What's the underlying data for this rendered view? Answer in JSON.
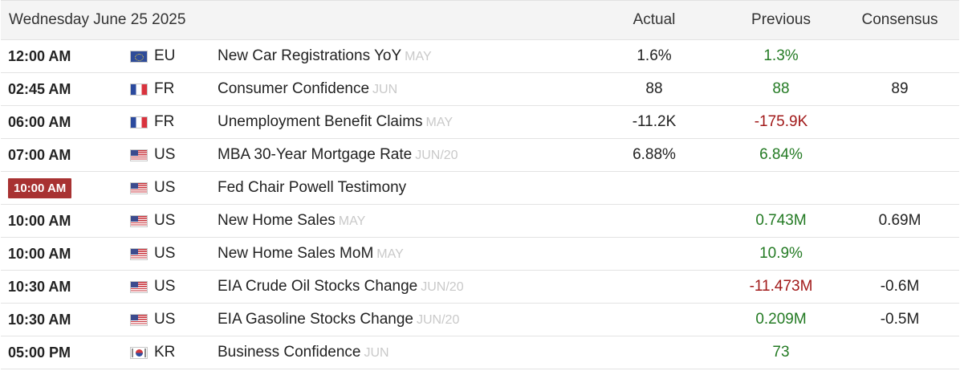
{
  "header": {
    "date": "Wednesday June 25 2025",
    "actual": "Actual",
    "previous": "Previous",
    "consensus": "Consensus"
  },
  "colors": {
    "positive": "#237a23",
    "negative": "#a11a1a",
    "live_badge": "#a83232"
  },
  "rows": [
    {
      "time": "12:00 AM",
      "flag": "eu-flag-icon",
      "country": "EU",
      "event": "New Car Registrations YoY",
      "period": "MAY",
      "actual": "1.6%",
      "previous": "1.3%",
      "consensus": ""
    },
    {
      "time": "02:45 AM",
      "flag": "fr-flag-icon",
      "country": "FR",
      "event": "Consumer Confidence",
      "period": "JUN",
      "actual": "88",
      "previous": "88",
      "consensus": "89"
    },
    {
      "time": "06:00 AM",
      "flag": "fr-flag-icon",
      "country": "FR",
      "event": "Unemployment Benefit Claims",
      "period": "MAY",
      "actual": "-11.2K",
      "previous": "-175.9K",
      "consensus": ""
    },
    {
      "time": "07:00 AM",
      "flag": "us-flag-icon",
      "country": "US",
      "event": "MBA 30-Year Mortgage Rate",
      "period": "JUN/20",
      "actual": "6.88%",
      "previous": "6.84%",
      "consensus": ""
    },
    {
      "time": "10:00 AM",
      "flag": "us-flag-icon",
      "country": "US",
      "event": "Fed Chair Powell Testimony",
      "period": "",
      "actual": "",
      "previous": "",
      "consensus": "",
      "highlight": true
    },
    {
      "time": "10:00 AM",
      "flag": "us-flag-icon",
      "country": "US",
      "event": "New Home Sales",
      "period": "MAY",
      "actual": "",
      "previous": "0.743M",
      "consensus": "0.69M"
    },
    {
      "time": "10:00 AM",
      "flag": "us-flag-icon",
      "country": "US",
      "event": "New Home Sales MoM",
      "period": "MAY",
      "actual": "",
      "previous": "10.9%",
      "consensus": ""
    },
    {
      "time": "10:30 AM",
      "flag": "us-flag-icon",
      "country": "US",
      "event": "EIA Crude Oil Stocks Change",
      "period": "JUN/20",
      "actual": "",
      "previous": "-11.473M",
      "consensus": "-0.6M"
    },
    {
      "time": "10:30 AM",
      "flag": "us-flag-icon",
      "country": "US",
      "event": "EIA Gasoline Stocks Change",
      "period": "JUN/20",
      "actual": "",
      "previous": "0.209M",
      "consensus": "-0.5M"
    },
    {
      "time": "05:00 PM",
      "flag": "kr-flag-icon",
      "country": "KR",
      "event": "Business Confidence",
      "period": "JUN",
      "actual": "",
      "previous": "73",
      "consensus": ""
    }
  ]
}
